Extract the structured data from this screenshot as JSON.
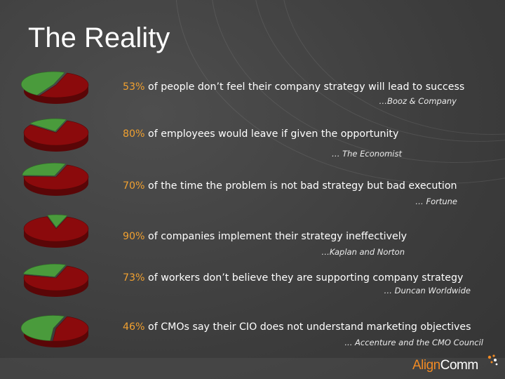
{
  "title": "The Reality",
  "stats": [
    {
      "pct": "53%",
      "text": " of people don’t feel their company strategy will lead to success",
      "source": "…Booz & Company"
    },
    {
      "pct": "80%",
      "text": " of employees would leave if given the opportunity",
      "source": "… The Economist"
    },
    {
      "pct": "70%",
      "text": " of the time the problem is not bad strategy but bad execution",
      "source": "… Fortune"
    },
    {
      "pct": "90%",
      "text": " of companies implement their strategy ineffectively",
      "source": "…Kaplan and Norton"
    },
    {
      "pct": "73%",
      "text": " of workers don’t believe they are supporting company strategy",
      "source": "… Duncan Worldwide"
    },
    {
      "pct": "46%",
      "text": " of CMOs say their CIO does not understand marketing objectives",
      "source": "... Accenture and the CMO Council"
    }
  ],
  "pies": [
    {
      "red_share": 0.53
    },
    {
      "red_share": 0.8
    },
    {
      "red_share": 0.7
    },
    {
      "red_share": 0.9
    },
    {
      "red_share": 0.73
    },
    {
      "red_share": 0.46
    }
  ],
  "colors": {
    "accent": "#f0a030",
    "pie_red": "#8b0a0c",
    "pie_green": "#4a9b3c"
  },
  "logo": {
    "part1": "Align",
    "part2": "Comm"
  }
}
